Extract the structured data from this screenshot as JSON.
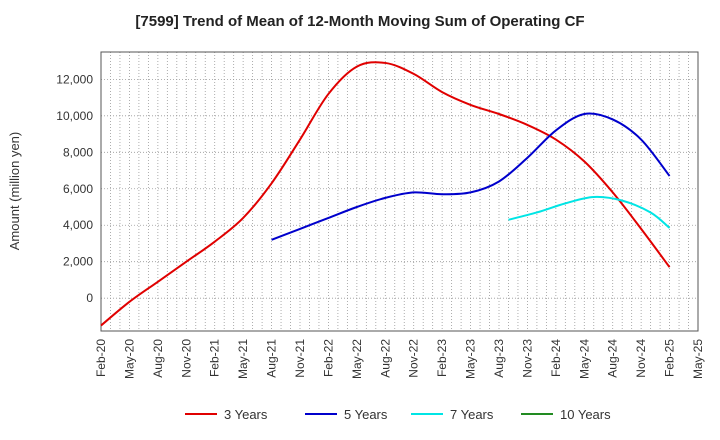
{
  "chart_data": {
    "type": "line",
    "title": "[7599]  Trend of Mean of 12-Month Moving Sum of Operating CF",
    "xlabel": "",
    "ylabel": "Amount (million yen)",
    "ylim": [
      -1800,
      13500
    ],
    "yticks": [
      0,
      2000,
      4000,
      6000,
      8000,
      10000,
      12000
    ],
    "ytick_labels": [
      "0",
      "2,000",
      "4,000",
      "6,000",
      "8,000",
      "10,000",
      "12,000"
    ],
    "x_start": "Feb-20",
    "x_end": "May-25",
    "x_tick_labels": [
      "Feb-20",
      "May-20",
      "Aug-20",
      "Nov-20",
      "Feb-21",
      "May-21",
      "Aug-21",
      "Nov-21",
      "Feb-22",
      "May-22",
      "Aug-22",
      "Nov-22",
      "Feb-23",
      "May-23",
      "Aug-23",
      "Nov-23",
      "Feb-24",
      "May-24",
      "Aug-24",
      "Nov-24",
      "Feb-25",
      "May-25"
    ],
    "grid": true,
    "legend_position": "bottom",
    "series": [
      {
        "name": "3 Years",
        "color": "#e00000",
        "points": [
          [
            0,
            -1500
          ],
          [
            3,
            -200
          ],
          [
            6,
            900
          ],
          [
            9,
            2000
          ],
          [
            12,
            3100
          ],
          [
            15,
            4400
          ],
          [
            18,
            6300
          ],
          [
            21,
            8700
          ],
          [
            24,
            11200
          ],
          [
            27,
            12700
          ],
          [
            30,
            12900
          ],
          [
            33,
            12300
          ],
          [
            36,
            11300
          ],
          [
            39,
            10600
          ],
          [
            42,
            10100
          ],
          [
            45,
            9500
          ],
          [
            48,
            8700
          ],
          [
            51,
            7500
          ],
          [
            54,
            5800
          ],
          [
            57,
            3800
          ],
          [
            60,
            1700
          ]
        ]
      },
      {
        "name": "5 Years",
        "color": "#0000cc",
        "points": [
          [
            18,
            3200
          ],
          [
            21,
            3800
          ],
          [
            24,
            4400
          ],
          [
            27,
            5000
          ],
          [
            30,
            5500
          ],
          [
            33,
            5800
          ],
          [
            36,
            5700
          ],
          [
            39,
            5800
          ],
          [
            42,
            6400
          ],
          [
            45,
            7700
          ],
          [
            48,
            9200
          ],
          [
            51,
            10100
          ],
          [
            54,
            9800
          ],
          [
            57,
            8700
          ],
          [
            60,
            6700
          ]
        ]
      },
      {
        "name": "7 Years",
        "color": "#00e5e5",
        "points": [
          [
            43,
            4300
          ],
          [
            46,
            4700
          ],
          [
            49,
            5200
          ],
          [
            52,
            5550
          ],
          [
            55,
            5350
          ],
          [
            58,
            4700
          ],
          [
            60,
            3850
          ]
        ]
      },
      {
        "name": "10 Years",
        "color": "#228b22",
        "points": []
      }
    ]
  }
}
